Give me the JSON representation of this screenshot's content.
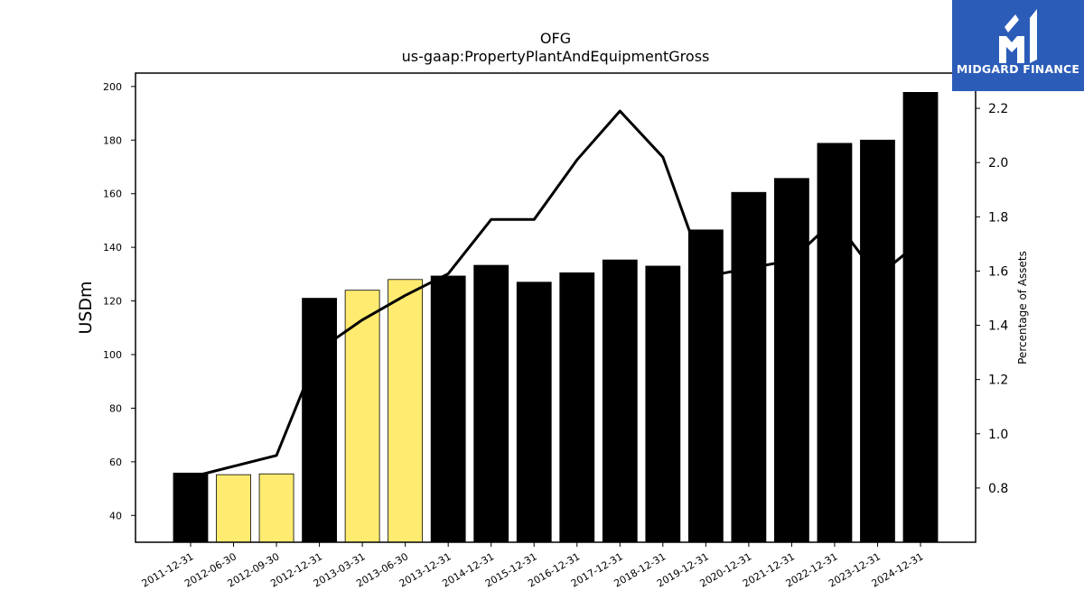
{
  "chart_data": {
    "type": "bar",
    "title": "OFG",
    "subtitle": "us-gaap:PropertyPlantAndEquipmentGross",
    "ylabel": "USDm",
    "y2label": "Percentage of Assets",
    "ylim": [
      30,
      205
    ],
    "y2lim": [
      0.6,
      2.33
    ],
    "yticks": [
      40,
      60,
      80,
      100,
      120,
      140,
      160,
      180,
      200
    ],
    "y2ticks": [
      0.8,
      1.0,
      1.2,
      1.4,
      1.6,
      1.8,
      2.0,
      2.2
    ],
    "categories": [
      "2011-12-31",
      "2012-06-30",
      "2012-09-30",
      "2012-12-31",
      "2013-03-31",
      "2013-06-30",
      "2013-12-31",
      "2014-12-31",
      "2015-12-31",
      "2016-12-31",
      "2017-12-31",
      "2018-12-31",
      "2019-12-31",
      "2020-12-31",
      "2021-12-31",
      "2022-12-31",
      "2023-12-31",
      "2024-12-31"
    ],
    "series": [
      {
        "kind": "bar",
        "axis": "left",
        "values": [
          55.8,
          55.2,
          55.5,
          121.0,
          124.0,
          128.0,
          129.3,
          133.3,
          127.0,
          130.5,
          135.3,
          133.0,
          146.5,
          160.5,
          165.7,
          178.8,
          180.0,
          197.8
        ],
        "fill": [
          "#000000",
          "#ffeb70",
          "#ffeb70",
          "#000000",
          "#ffeb70",
          "#ffeb70",
          "#000000",
          "#000000",
          "#000000",
          "#000000",
          "#000000",
          "#000000",
          "#000000",
          "#000000",
          "#000000",
          "#000000",
          "#000000",
          "#000000"
        ]
      },
      {
        "kind": "line",
        "axis": "right",
        "color": "#000000",
        "values": [
          0.84,
          0.88,
          0.92,
          1.31,
          1.42,
          1.51,
          1.59,
          1.79,
          1.79,
          2.01,
          2.19,
          2.02,
          1.58,
          1.61,
          1.64,
          1.79,
          1.58,
          1.71
        ]
      }
    ],
    "grid": false,
    "legend": "none"
  },
  "logo": {
    "text": "MIDGARD FINANCE",
    "background": "#2b5cb8",
    "color": "#ffffff"
  }
}
